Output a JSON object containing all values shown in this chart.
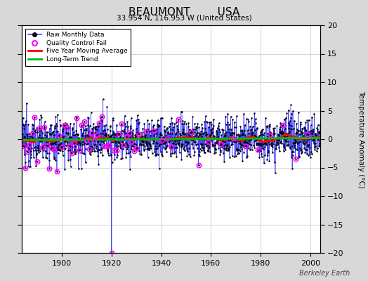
{
  "title_line1": "BEAUMONT        USA",
  "title_line2": "33.954 N, 116.953 W (United States)",
  "ylabel_right": "Temperature Anomaly (°C)",
  "xlim": [
    1884,
    2004
  ],
  "ylim": [
    -20,
    20
  ],
  "yticks": [
    -20,
    -15,
    -10,
    -5,
    0,
    5,
    10,
    15,
    20
  ],
  "xticks": [
    1900,
    1920,
    1940,
    1960,
    1980,
    2000
  ],
  "background_color": "#d8d8d8",
  "plot_bg_color": "#ffffff",
  "raw_line_color": "#4444ff",
  "raw_marker_color": "#000000",
  "qc_fail_color": "#ff00ff",
  "moving_avg_color": "#ff0000",
  "trend_color": "#00bb00",
  "watermark": "Berkeley Earth",
  "seed": 12345,
  "n_points": 1440,
  "start_year": 1884,
  "spike_index": 432,
  "spike_value": -20.0
}
